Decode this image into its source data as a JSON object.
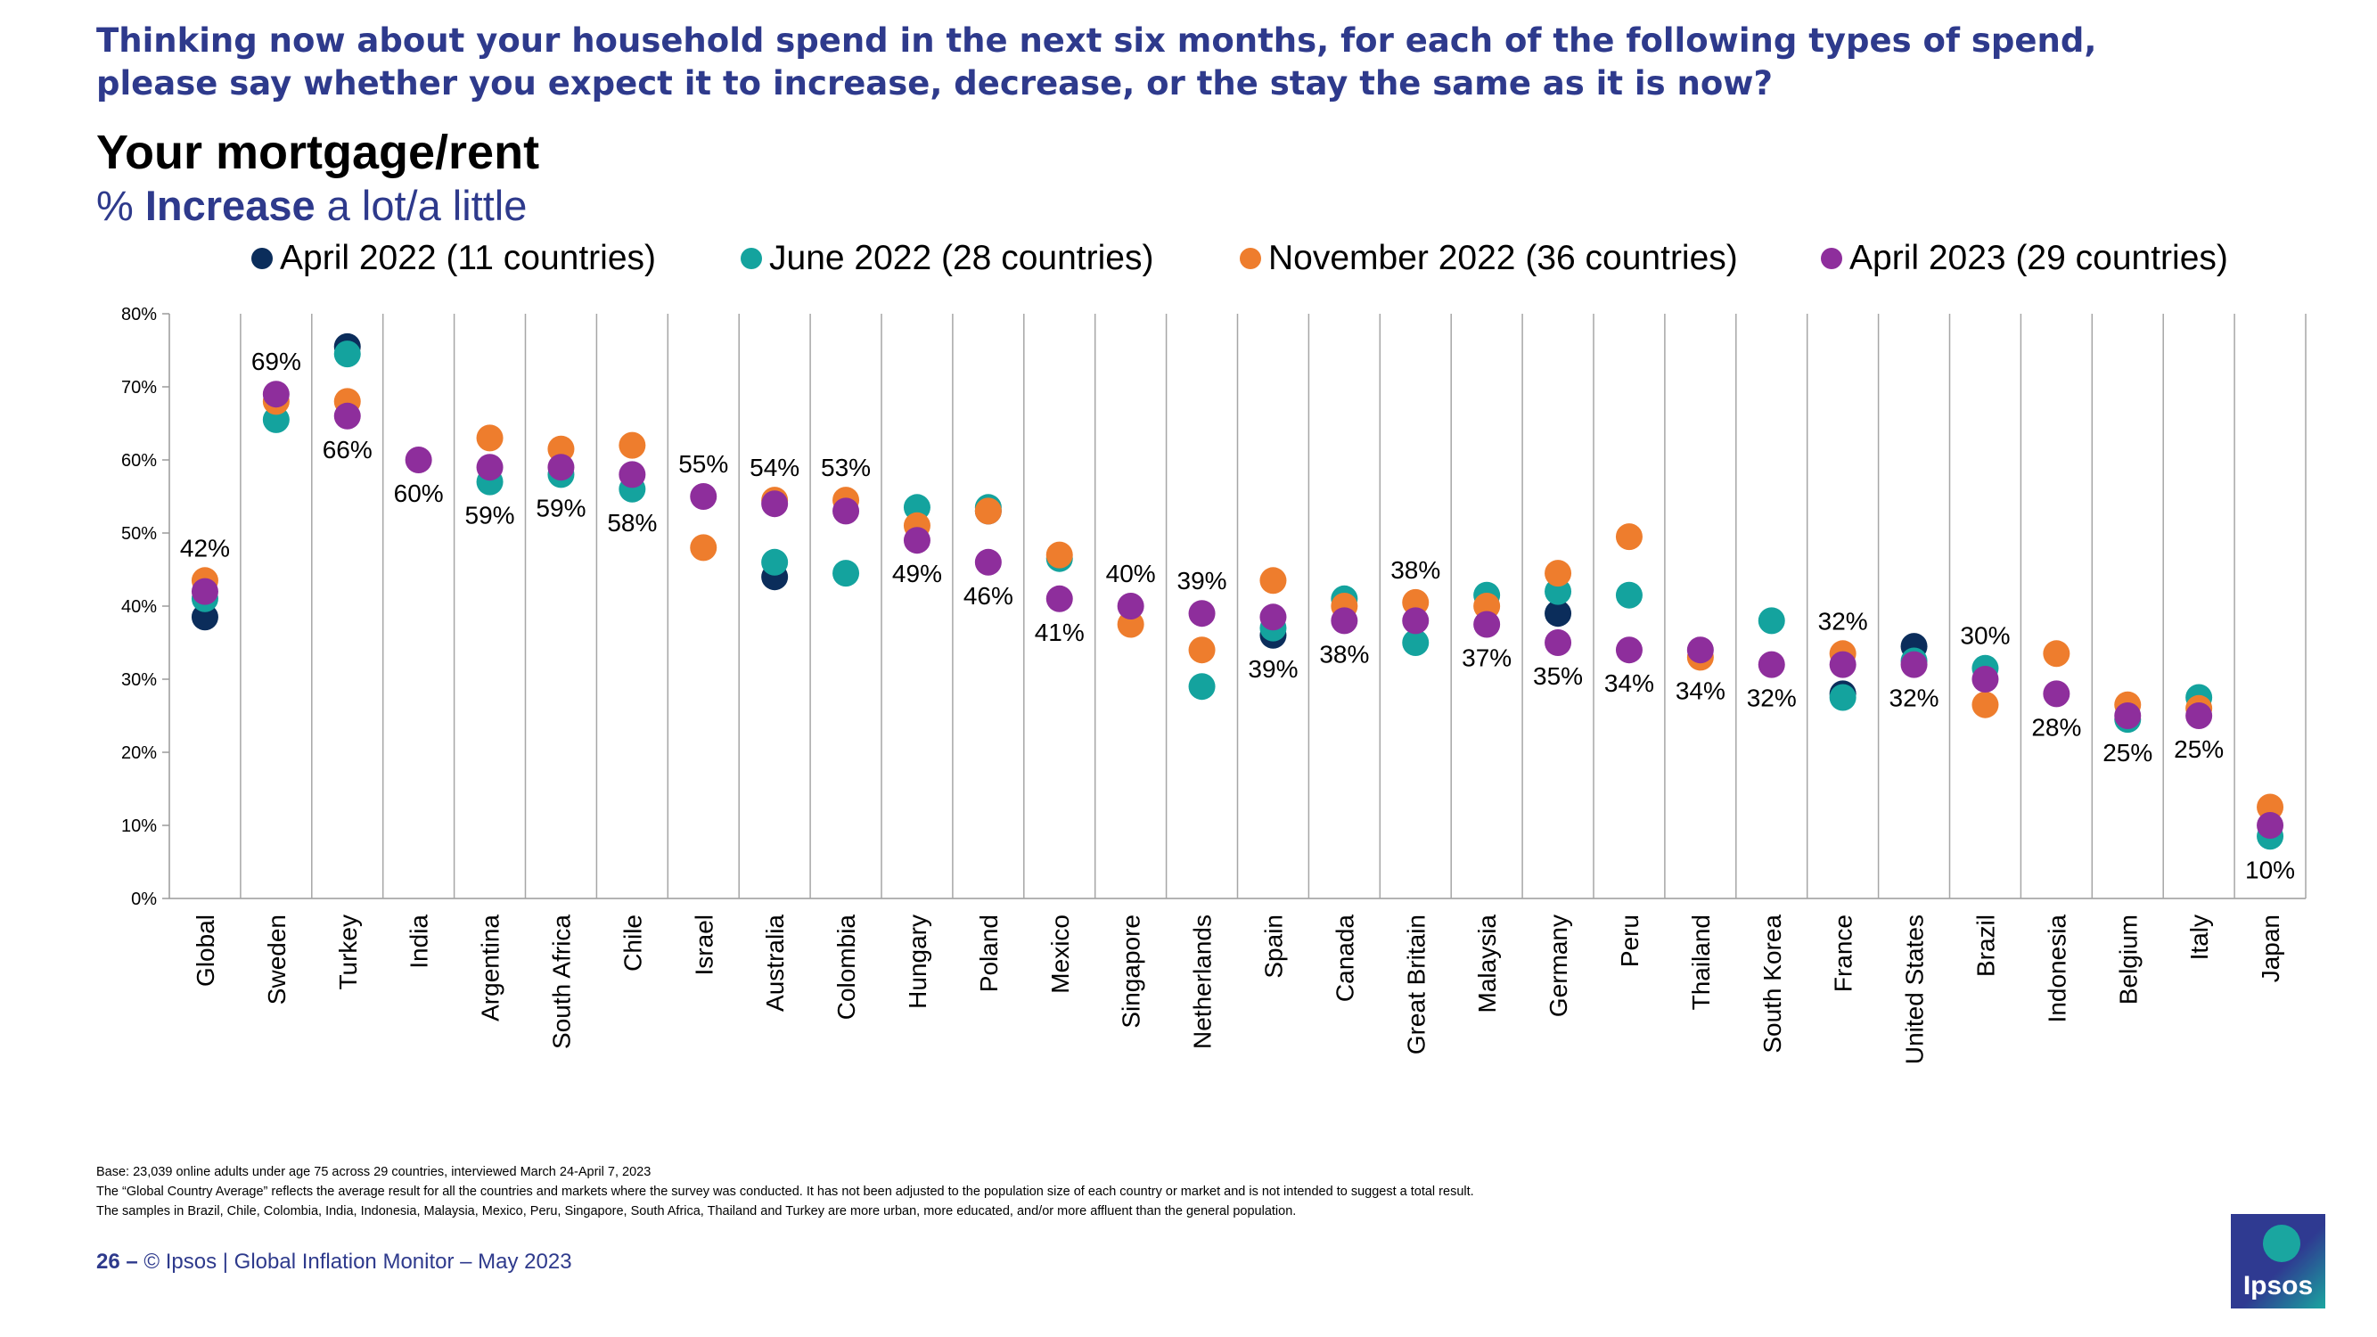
{
  "header": {
    "question_line1": "Thinking now about your household spend in the next six months, for each of the following types of spend,",
    "question_line2": "please say whether you expect it to increase, decrease, or the stay the same as it is now?",
    "title": "Your mortgage/rent",
    "subtitle_prefix": "% ",
    "subtitle_bold": "Increase",
    "subtitle_rest": " a lot/a little"
  },
  "legend": [
    {
      "label": "April 2022 (11 countries)",
      "color": "#0b2d5b"
    },
    {
      "label": "June 2022 (28 countries)",
      "color": "#14a39e"
    },
    {
      "label": "November 2022 (36 countries)",
      "color": "#ee7d2d"
    },
    {
      "label": "April 2023 (29 countries)",
      "color": "#8e2e9c"
    }
  ],
  "chart_data": {
    "type": "scatter",
    "title": "Your mortgage/rent",
    "subtitle": "% Increase a lot/a little",
    "xlabel": "",
    "ylabel": "",
    "ylim": [
      0,
      80
    ],
    "yticks": [
      "0%",
      "10%",
      "20%",
      "30%",
      "40%",
      "50%",
      "60%",
      "70%",
      "80%"
    ],
    "grid": "vertical separators between countries",
    "categories": [
      "Global",
      "Sweden",
      "Turkey",
      "India",
      "Argentina",
      "South Africa",
      "Chile",
      "Israel",
      "Australia",
      "Colombia",
      "Hungary",
      "Poland",
      "Mexico",
      "Singapore",
      "Netherlands",
      "Spain",
      "Canada",
      "Great Britain",
      "Malaysia",
      "Germany",
      "Peru",
      "Thailand",
      "South Korea",
      "France",
      "United States",
      "Brazil",
      "Indonesia",
      "Belgium",
      "Italy",
      "Japan"
    ],
    "series": [
      {
        "name": "April 2022 (11 countries)",
        "color": "#0b2d5b",
        "values": [
          38.5,
          null,
          75.5,
          null,
          null,
          null,
          null,
          null,
          44,
          null,
          null,
          53,
          null,
          null,
          null,
          36,
          null,
          null,
          null,
          39,
          null,
          null,
          null,
          28,
          34.5,
          null,
          null,
          null,
          null,
          null
        ]
      },
      {
        "name": "June 2022 (28 countries)",
        "color": "#14a39e",
        "values": [
          41,
          65.5,
          74.5,
          null,
          57,
          58,
          56,
          null,
          46,
          44.5,
          53.5,
          53.5,
          46.5,
          null,
          29,
          37,
          41,
          35,
          41.5,
          42,
          41.5,
          null,
          38,
          27.5,
          32.5,
          31.5,
          null,
          24.5,
          27.5,
          8.5
        ]
      },
      {
        "name": "November 2022 (36 countries)",
        "color": "#ee7d2d",
        "values": [
          43.5,
          68,
          68,
          null,
          63,
          61.5,
          62,
          48,
          54.5,
          54.5,
          51,
          53,
          47,
          37.5,
          34,
          43.5,
          40,
          40.5,
          40,
          44.5,
          49.5,
          33,
          null,
          33.5,
          null,
          26.5,
          33.5,
          26.5,
          26,
          12.5
        ]
      },
      {
        "name": "April 2023 (29 countries)",
        "color": "#8e2e9c",
        "values": [
          42,
          69,
          66,
          60,
          59,
          59,
          58,
          55,
          54,
          53,
          49,
          46,
          41,
          40,
          39,
          38.5,
          38,
          38,
          37.5,
          35,
          34,
          34,
          32,
          32,
          32,
          30,
          28,
          25,
          25,
          10
        ]
      }
    ],
    "data_labels": [
      {
        "country": "Global",
        "text": "42%",
        "pos": "above"
      },
      {
        "country": "Sweden",
        "text": "69%",
        "pos": "above"
      },
      {
        "country": "Turkey",
        "text": "66%",
        "pos": "below"
      },
      {
        "country": "India",
        "text": "60%",
        "pos": "below"
      },
      {
        "country": "Argentina",
        "text": "59%",
        "pos": "below"
      },
      {
        "country": "South Africa",
        "text": "59%",
        "pos": "below"
      },
      {
        "country": "Chile",
        "text": "58%",
        "pos": "below"
      },
      {
        "country": "Israel",
        "text": "55%",
        "pos": "above"
      },
      {
        "country": "Australia",
        "text": "54%",
        "pos": "above"
      },
      {
        "country": "Colombia",
        "text": "53%",
        "pos": "above"
      },
      {
        "country": "Hungary",
        "text": "49%",
        "pos": "below"
      },
      {
        "country": "Poland",
        "text": "46%",
        "pos": "below"
      },
      {
        "country": "Mexico",
        "text": "41%",
        "pos": "below"
      },
      {
        "country": "Singapore",
        "text": "40%",
        "pos": "above"
      },
      {
        "country": "Netherlands",
        "text": "39%",
        "pos": "above"
      },
      {
        "country": "Spain",
        "text": "39%",
        "pos": "below"
      },
      {
        "country": "Canada",
        "text": "38%",
        "pos": "below"
      },
      {
        "country": "Great Britain",
        "text": "38%",
        "pos": "above"
      },
      {
        "country": "Malaysia",
        "text": "37%",
        "pos": "below"
      },
      {
        "country": "Germany",
        "text": "35%",
        "pos": "below"
      },
      {
        "country": "Peru",
        "text": "34%",
        "pos": "below"
      },
      {
        "country": "Thailand",
        "text": "34%",
        "pos": "below"
      },
      {
        "country": "South Korea",
        "text": "32%",
        "pos": "below"
      },
      {
        "country": "France",
        "text": "32%",
        "pos": "above"
      },
      {
        "country": "United States",
        "text": "32%",
        "pos": "below"
      },
      {
        "country": "Brazil",
        "text": "30%",
        "pos": "above"
      },
      {
        "country": "Indonesia",
        "text": "28%",
        "pos": "below"
      },
      {
        "country": "Belgium",
        "text": "25%",
        "pos": "below"
      },
      {
        "country": "Italy",
        "text": "25%",
        "pos": "below"
      },
      {
        "country": "Japan",
        "text": "10%",
        "pos": "below"
      }
    ]
  },
  "footnotes": [
    "Base: 23,039 online adults under age 75 across 29 countries, interviewed March 24-April 7, 2023",
    "The “Global Country Average” reflects the average result for all the countries and markets where the survey was conducted. It has not been adjusted to the population size of each country or market and is not intended to suggest a total result.",
    "The samples in Brazil, Chile, Colombia, India, Indonesia, Malaysia, Mexico, Peru, Singapore, South Africa, Thailand and Turkey are more urban, more educated, and/or more affluent than the general population."
  ],
  "footer": {
    "page_number": "26",
    "separator": " – ",
    "text": "© Ipsos | Global Inflation Monitor – May 2023"
  },
  "logo": {
    "text": "Ipsos"
  }
}
